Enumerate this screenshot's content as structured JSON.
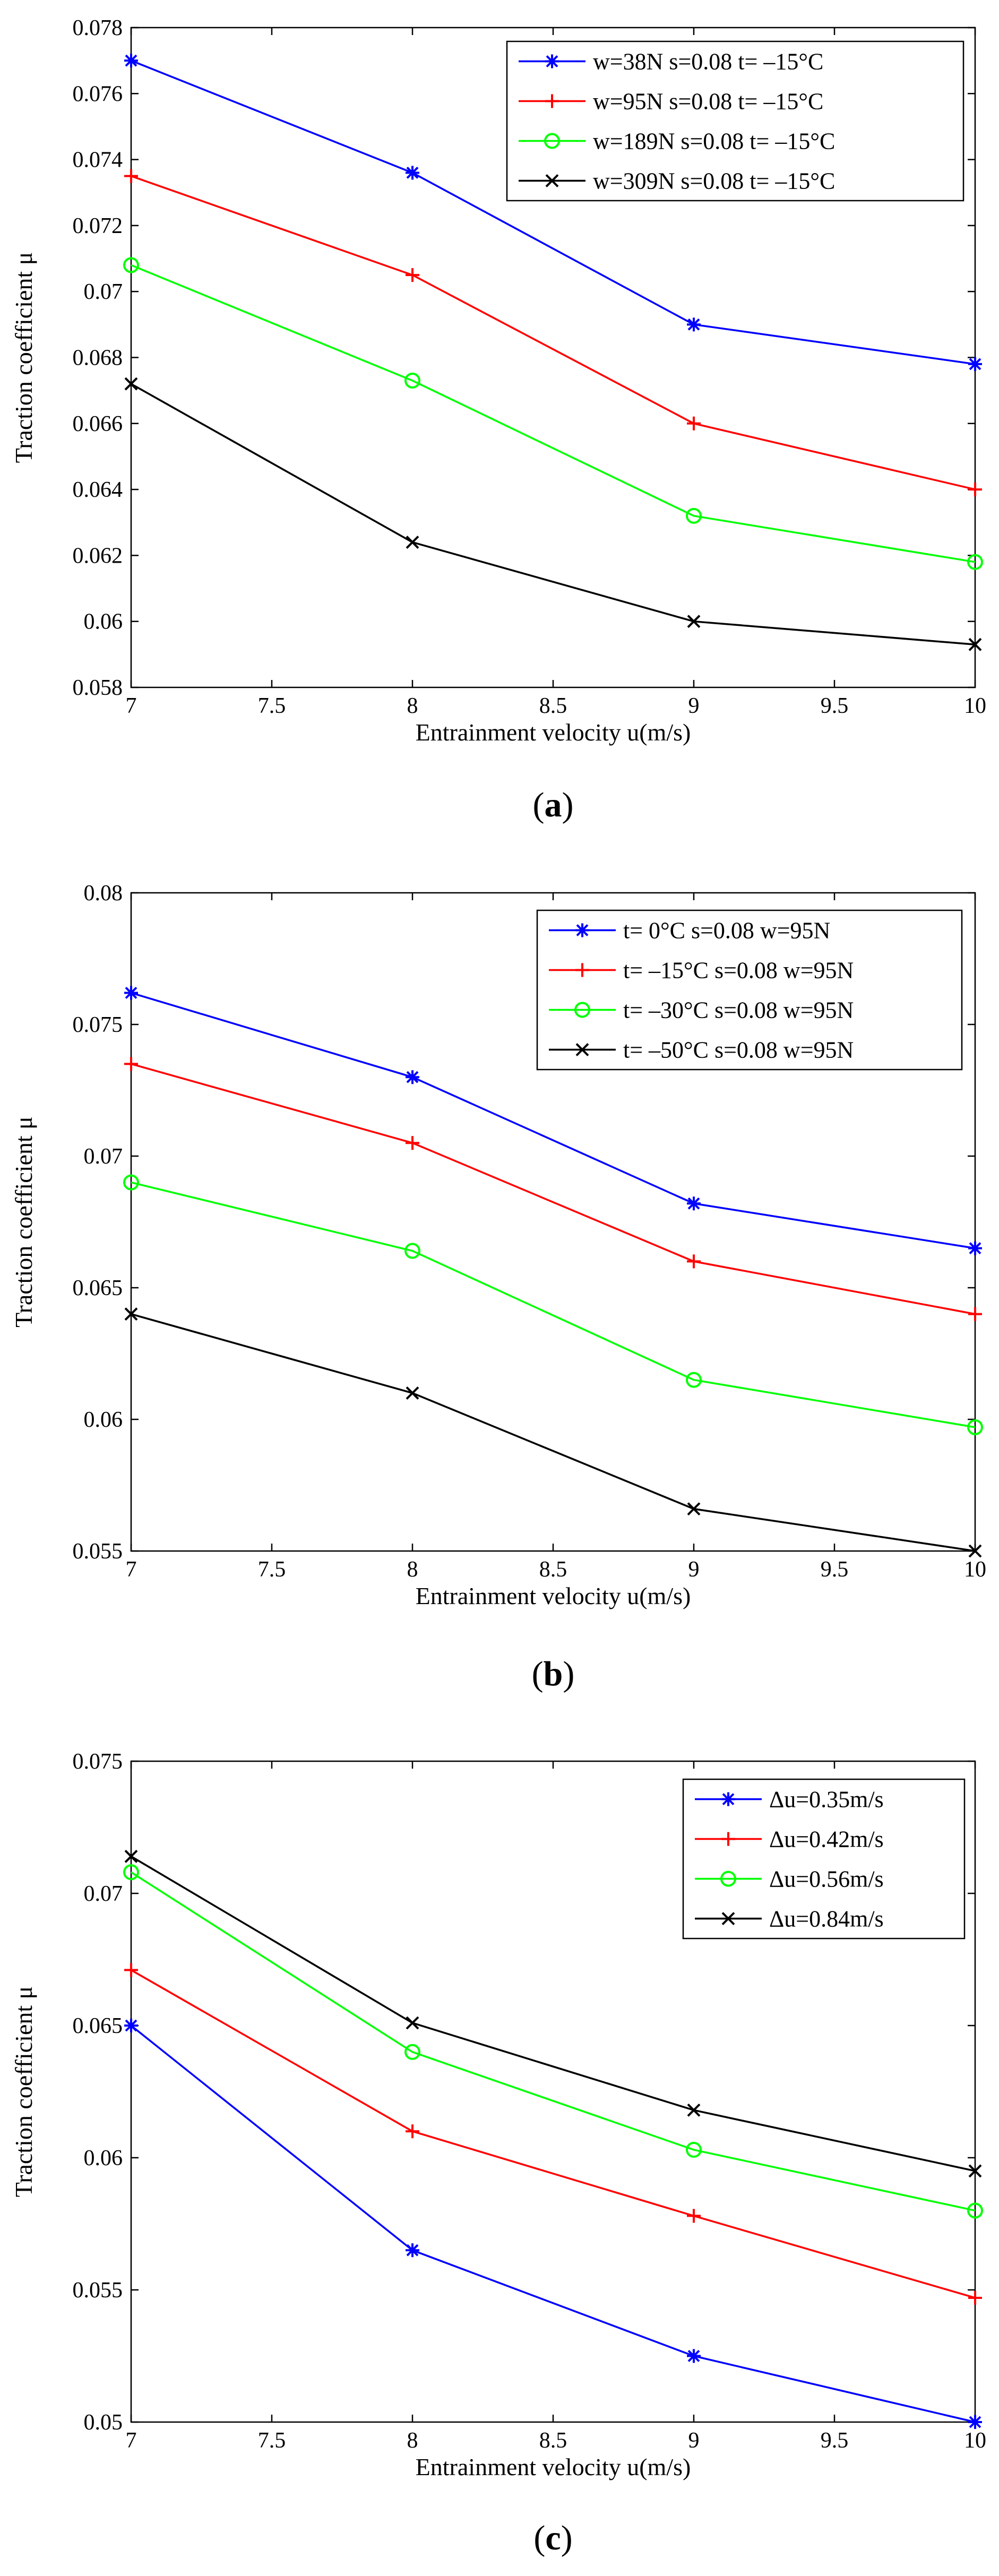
{
  "chart_data": [
    {
      "type": "line",
      "caption": "a",
      "x": [
        7,
        8,
        9,
        10
      ],
      "xlim": [
        7,
        10
      ],
      "ylim": [
        0.058,
        0.078
      ],
      "xticks": [
        "7",
        "7.5",
        "8",
        "8.5",
        "9",
        "9.5",
        "10"
      ],
      "yticks": [
        "0.058",
        "0.06",
        "0.062",
        "0.064",
        "0.066",
        "0.068",
        "0.07",
        "0.072",
        "0.074",
        "0.076",
        "0.078"
      ],
      "xlabel": "Entrainment velocity  u(m/s)",
      "ylabel": "Traction coefficient   μ",
      "legend_position": "top-right",
      "grid": false,
      "series": [
        {
          "name": "w=38N s=0.08 t= –15°C",
          "color": "#0000FF",
          "marker": "asterisk",
          "values": [
            0.077,
            0.0736,
            0.069,
            0.0678
          ]
        },
        {
          "name": "w=95N s=0.08 t= –15°C",
          "color": "#FF0000",
          "marker": "plus",
          "values": [
            0.0735,
            0.0705,
            0.066,
            0.064
          ]
        },
        {
          "name": "w=189N s=0.08 t= –15°C",
          "color": "#00FF00",
          "marker": "circle",
          "values": [
            0.0708,
            0.0673,
            0.0632,
            0.0618
          ]
        },
        {
          "name": "w=309N s=0.08 t= –15°C",
          "color": "#000000",
          "marker": "cross",
          "values": [
            0.0672,
            0.0624,
            0.06,
            0.0593
          ]
        }
      ]
    },
    {
      "type": "line",
      "caption": "b",
      "x": [
        7,
        8,
        9,
        10
      ],
      "xlim": [
        7,
        10
      ],
      "ylim": [
        0.055,
        0.08
      ],
      "xticks": [
        "7",
        "7.5",
        "8",
        "8.5",
        "9",
        "9.5",
        "10"
      ],
      "yticks": [
        "0.055",
        "0.06",
        "0.065",
        "0.07",
        "0.075",
        "0.08"
      ],
      "xlabel": "Entrainment velocity  u(m/s)",
      "ylabel": "Traction coefficient   μ",
      "legend_position": "top-right",
      "grid": false,
      "series": [
        {
          "name": "t= 0°C s=0.08 w=95N",
          "color": "#0000FF",
          "marker": "asterisk",
          "values": [
            0.0762,
            0.073,
            0.0682,
            0.0665
          ]
        },
        {
          "name": "t= –15°C s=0.08 w=95N",
          "color": "#FF0000",
          "marker": "plus",
          "values": [
            0.0735,
            0.0705,
            0.066,
            0.064
          ]
        },
        {
          "name": "t= –30°C s=0.08 w=95N",
          "color": "#00FF00",
          "marker": "circle",
          "values": [
            0.069,
            0.0664,
            0.0615,
            0.0597
          ]
        },
        {
          "name": "t= –50°C s=0.08 w=95N",
          "color": "#000000",
          "marker": "cross",
          "values": [
            0.064,
            0.061,
            0.0566,
            0.055
          ]
        }
      ]
    },
    {
      "type": "line",
      "caption": "c",
      "x": [
        7,
        8,
        9,
        10
      ],
      "xlim": [
        7,
        10
      ],
      "ylim": [
        0.05,
        0.075
      ],
      "xticks": [
        "7",
        "7.5",
        "8",
        "8.5",
        "9",
        "9.5",
        "10"
      ],
      "yticks": [
        "0.05",
        "0.055",
        "0.06",
        "0.065",
        "0.07",
        "0.075"
      ],
      "xlabel": "Entrainment velocity  u(m/s)",
      "ylabel": "Traction coefficient   μ",
      "legend_position": "top-right",
      "grid": false,
      "series": [
        {
          "name": "Δu=0.35m/s",
          "color": "#0000FF",
          "marker": "asterisk",
          "values": [
            0.065,
            0.0565,
            0.0525,
            0.05
          ]
        },
        {
          "name": "Δu=0.42m/s",
          "color": "#FF0000",
          "marker": "plus",
          "values": [
            0.0671,
            0.061,
            0.0578,
            0.0547
          ]
        },
        {
          "name": "Δu=0.56m/s",
          "color": "#00FF00",
          "marker": "circle",
          "values": [
            0.0708,
            0.064,
            0.0603,
            0.058
          ]
        },
        {
          "name": "Δu=0.84m/s",
          "color": "#000000",
          "marker": "cross",
          "values": [
            0.0714,
            0.0651,
            0.0618,
            0.0595
          ]
        }
      ]
    }
  ]
}
